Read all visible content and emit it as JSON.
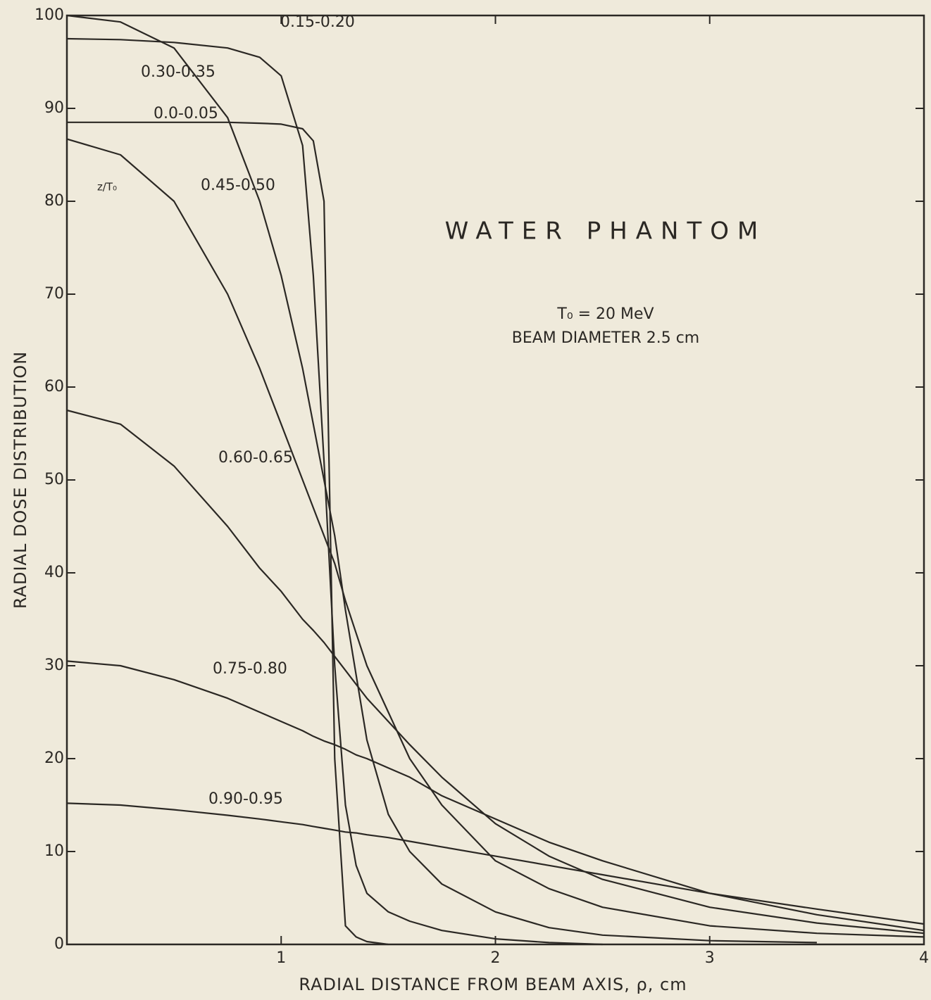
{
  "chart_data": {
    "type": "line",
    "title": "WATER PHANTOM",
    "annotations": [
      "T₀ = 20 MeV",
      "BEAM DIAMETER 2.5 cm",
      "z/T₀"
    ],
    "xlabel": "RADIAL DISTANCE FROM BEAM AXIS, ρ, cm",
    "ylabel": "RADIAL DOSE DISTRIBUTION",
    "x": [
      0,
      0.25,
      0.5,
      0.75,
      0.9,
      1.0,
      1.1,
      1.15,
      1.2,
      1.25,
      1.3,
      1.35,
      1.4,
      1.5,
      1.6,
      1.75,
      2,
      2.25,
      2.5,
      3,
      3.5,
      4
    ],
    "series": [
      {
        "name": "0.0-0.05",
        "color": "#2b2824",
        "values": [
          88.5,
          88.5,
          88.5,
          88.5,
          88.4,
          88.3,
          87.8,
          86.5,
          80,
          20,
          2,
          0.8,
          0.3,
          0,
          null,
          null,
          null,
          null,
          null,
          null,
          null,
          null
        ]
      },
      {
        "name": "0.15-0.20",
        "color": "#2b2824",
        "values": [
          97.5,
          97.4,
          97.1,
          96.5,
          95.5,
          93.5,
          86,
          72,
          52,
          30,
          15,
          8.5,
          5.5,
          3.5,
          2.5,
          1.5,
          0.6,
          0.2,
          0,
          null,
          null,
          null
        ]
      },
      {
        "name": "0.30-0.35",
        "color": "#2b2824",
        "values": [
          100,
          99.3,
          96.5,
          89,
          80,
          72,
          62,
          56,
          50,
          44,
          36,
          29,
          22,
          14,
          10,
          6.5,
          3.5,
          1.8,
          1,
          0.4,
          0.2,
          null
        ]
      },
      {
        "name": "0.45-0.50",
        "color": "#2b2824",
        "values": [
          86.7,
          85,
          80,
          70,
          62,
          56,
          50,
          47,
          44,
          41,
          37,
          33.5,
          30,
          25,
          20,
          15,
          9,
          6,
          4,
          2,
          1.2,
          0.8
        ]
      },
      {
        "name": "0.60-0.65",
        "color": "#2b2824",
        "values": [
          57.5,
          56,
          51.5,
          45,
          40.5,
          38,
          35,
          33.8,
          32.5,
          31,
          29.5,
          28,
          26.5,
          24,
          21.5,
          18,
          13,
          9.5,
          7,
          4,
          2.3,
          1.2
        ]
      },
      {
        "name": "0.75-0.80",
        "color": "#2b2824",
        "values": [
          30.5,
          30,
          28.5,
          26.5,
          25,
          24,
          23,
          22.4,
          21.9,
          21.5,
          21,
          20.4,
          20,
          19,
          18,
          16,
          13.5,
          11,
          9,
          5.5,
          3.2,
          1.5
        ]
      },
      {
        "name": "0.90-0.95",
        "color": "#2b2824",
        "values": [
          15.2,
          15,
          14.5,
          13.9,
          13.5,
          13.2,
          12.9,
          12.7,
          12.5,
          12.3,
          12.1,
          12,
          11.8,
          11.5,
          11.1,
          10.5,
          9.5,
          8.5,
          7.5,
          5.5,
          3.8,
          2.2
        ]
      }
    ],
    "xlim": [
      0,
      4
    ],
    "xticks": [
      1,
      2,
      3,
      4
    ],
    "ylim": [
      0,
      100
    ],
    "yticks": [
      0,
      10,
      20,
      30,
      40,
      50,
      60,
      70,
      80,
      90,
      100
    ],
    "grid": false
  }
}
